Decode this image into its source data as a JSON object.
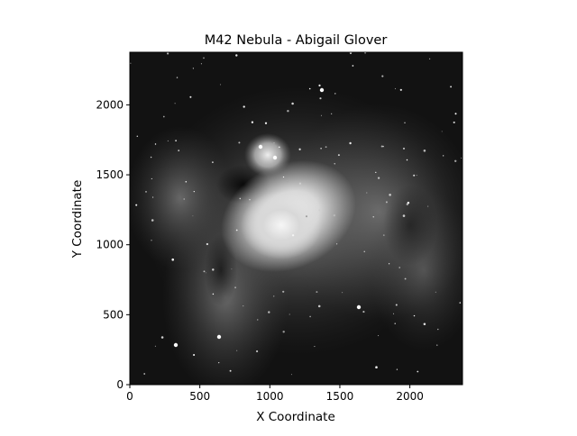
{
  "chart_data": {
    "type": "image",
    "title": "M42 Nebula - Abigail Glover",
    "xlabel": "X Coordinate",
    "ylabel": "Y Coordinate",
    "xlim": [
      0,
      2376
    ],
    "ylim": [
      0,
      2376
    ],
    "x_ticks": [
      0,
      500,
      1000,
      1500,
      2000
    ],
    "y_ticks": [
      0,
      500,
      1000,
      1500,
      2000
    ],
    "x_tick_labels": [
      "0",
      "500",
      "1000",
      "1500",
      "2000"
    ],
    "y_tick_labels": [
      "0",
      "500",
      "1000",
      "1500",
      "2000"
    ],
    "colormap": "gray",
    "grid": false,
    "colors": {
      "background": "#ffffff",
      "axes": "#000000",
      "image_dark": "#0d0d0d",
      "image_bright": "#f2f2f2"
    }
  }
}
